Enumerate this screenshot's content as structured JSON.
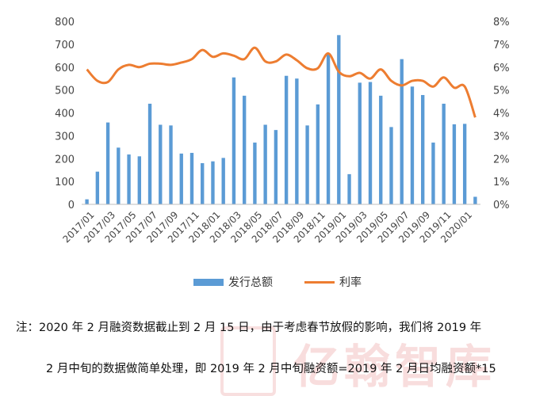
{
  "chart_data": {
    "type": "bar+line",
    "categories": [
      "2017/01",
      "2017/02",
      "2017/03",
      "2017/04",
      "2017/05",
      "2017/06",
      "2017/07",
      "2017/08",
      "2017/09",
      "2017/10",
      "2017/11",
      "2017/12",
      "2018/01",
      "2018/02",
      "2018/03",
      "2018/04",
      "2018/05",
      "2018/06",
      "2018/07",
      "2018/08",
      "2018/09",
      "2018/10",
      "2018/11",
      "2018/12",
      "2019/01",
      "2019/02",
      "2019/03",
      "2019/04",
      "2019/05",
      "2019/06",
      "2019/07",
      "2019/08",
      "2019/09",
      "2019/10",
      "2019/11",
      "2019/12",
      "2020/01",
      "2020/02"
    ],
    "x_tick_labels": [
      "2017/01",
      "2017/03",
      "2017/05",
      "2017/07",
      "2017/09",
      "2017/11",
      "2018/01",
      "2018/03",
      "2018/05",
      "2018/07",
      "2018/09",
      "2018/11",
      "2019/01",
      "2019/03",
      "2019/05",
      "2019/07",
      "2019/09",
      "2019/11",
      "2020/01"
    ],
    "series": [
      {
        "name": "发行总额",
        "type": "bar",
        "axis": "left",
        "color": "#5b9bd5",
        "values": [
          22,
          143,
          358,
          248,
          218,
          210,
          440,
          348,
          345,
          222,
          225,
          180,
          188,
          203,
          555,
          475,
          270,
          348,
          325,
          562,
          550,
          345,
          437,
          662,
          740,
          132,
          532,
          535,
          475,
          338,
          635,
          515,
          478,
          270,
          440,
          350,
          352,
          33
        ]
      },
      {
        "name": "利率",
        "type": "line",
        "axis": "right",
        "color": "#ed7d31",
        "values": [
          5.9,
          5.4,
          5.35,
          5.9,
          6.1,
          6.0,
          6.15,
          6.15,
          6.1,
          6.2,
          6.35,
          6.75,
          6.45,
          6.6,
          6.5,
          6.35,
          6.85,
          6.25,
          6.25,
          6.55,
          6.3,
          5.95,
          5.95,
          6.6,
          5.8,
          5.6,
          5.75,
          5.5,
          5.9,
          5.4,
          5.2,
          5.4,
          5.4,
          5.15,
          5.55,
          5.1,
          5.15,
          3.8
        ]
      }
    ],
    "y_left": {
      "range": [
        0,
        800
      ],
      "ticks": [
        "0",
        "100",
        "200",
        "300",
        "400",
        "500",
        "600",
        "700",
        "800"
      ]
    },
    "y_right": {
      "range": [
        0,
        8
      ],
      "ticks": [
        "0%",
        "1%",
        "2%",
        "3%",
        "4%",
        "5%",
        "6%",
        "7%",
        "8%"
      ]
    },
    "grid": false,
    "legend_position": "bottom"
  },
  "legend": {
    "bar_label": "发行总额",
    "line_label": "利率"
  },
  "colors": {
    "bar": "#5b9bd5",
    "line": "#ed7d31"
  },
  "note": {
    "line1": "注：2020 年 2 月融资数据截止到 2 月 15 日，由于考虑春节放假的影响，我们将 2019 年",
    "line2": "2 月中旬的数据做简单处理，即 2019 年 2 月中旬融资额=2019 年 2 月日均融资额*15"
  },
  "watermark": {
    "text": "亿翰智库"
  }
}
